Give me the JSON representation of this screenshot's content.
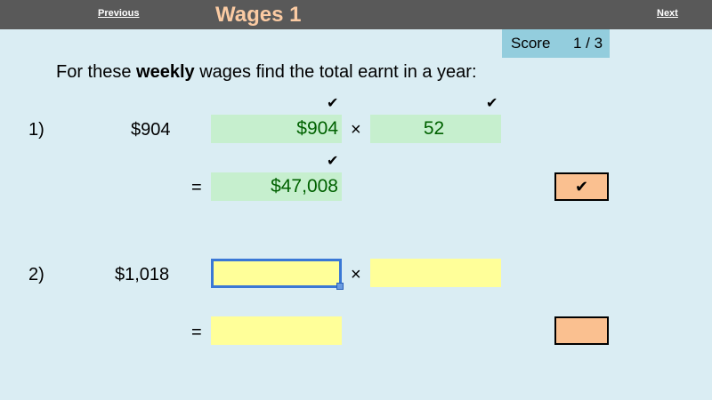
{
  "header": {
    "previous": "Previous",
    "title": "Wages 1",
    "next": "Next"
  },
  "score": {
    "label": "Score",
    "value": "1 / 3"
  },
  "instruction": {
    "before": "For these ",
    "bold": "weekly",
    "after": " wages find the total earnt in a year:"
  },
  "questions": [
    {
      "number": "1)",
      "wage": "$904",
      "input1": "$904",
      "times": "×",
      "input2": "52",
      "equals": "=",
      "result": "$47,008",
      "tick": "✔",
      "status": "✔"
    },
    {
      "number": "2)",
      "wage": "$1,018",
      "input1": "",
      "times": "×",
      "input2": "",
      "equals": "=",
      "result": "",
      "status": ""
    }
  ]
}
